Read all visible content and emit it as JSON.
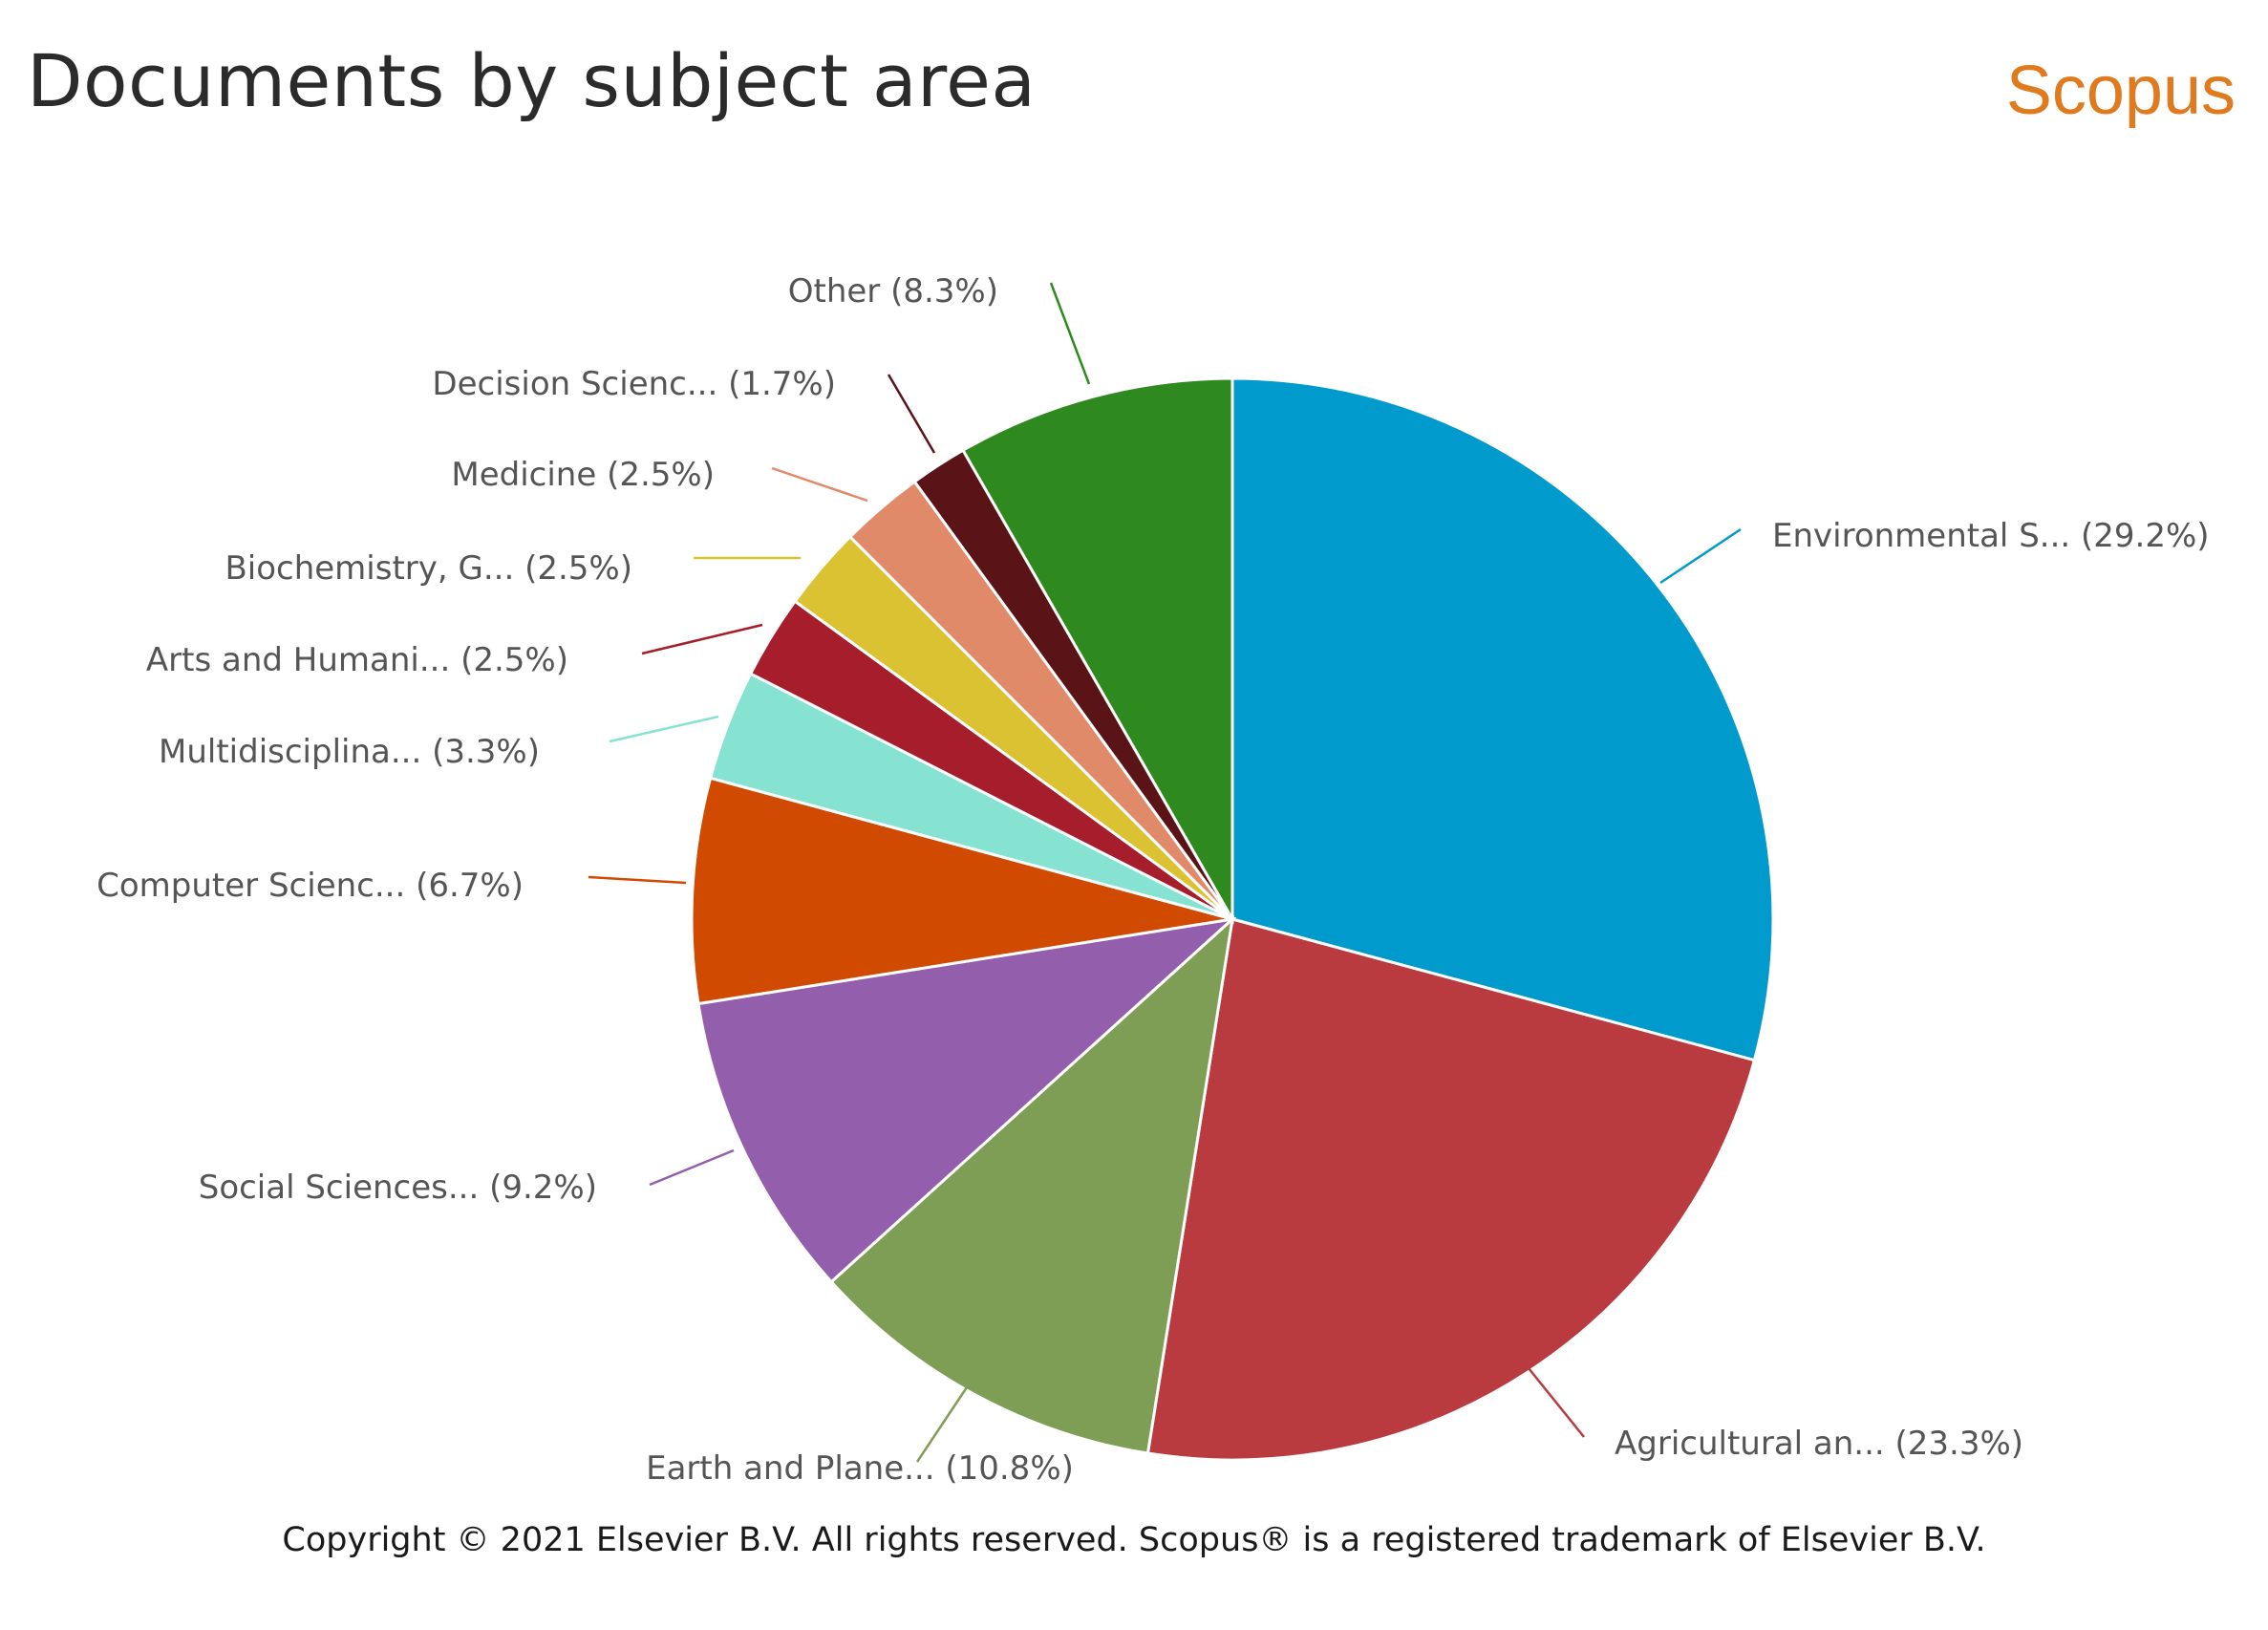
{
  "header": {
    "title": "Documents by subject area",
    "brand": "Scopus"
  },
  "footer": {
    "copyright": "Copyright © 2021 Elsevier B.V. All rights reserved. Scopus® is a registered trademark of Elsevier B.V."
  },
  "chart_data": {
    "type": "pie",
    "title": "Documents by subject area",
    "start_angle_deg": 0,
    "direction": "clockwise",
    "slices": [
      {
        "label": "Environmental S... (29.2%)",
        "value": 29.2,
        "color": "#009bcc"
      },
      {
        "label": "Agricultural an... (23.3%)",
        "value": 23.3,
        "color": "#b93a3f"
      },
      {
        "label": "Earth and Plane... (10.8%)",
        "value": 10.8,
        "color": "#7f9e55"
      },
      {
        "label": "Social Sciences... (9.2%)",
        "value": 9.2,
        "color": "#935fad"
      },
      {
        "label": "Computer Scienc... (6.7%)",
        "value": 6.7,
        "color": "#d14a02"
      },
      {
        "label": "Multidisciplina... (3.3%)",
        "value": 3.3,
        "color": "#86e3d2"
      },
      {
        "label": "Arts and Humani... (2.5%)",
        "value": 2.5,
        "color": "#a61e2b"
      },
      {
        "label": "Biochemistry, G... (2.5%)",
        "value": 2.5,
        "color": "#dbc232"
      },
      {
        "label": "Medicine (2.5%)",
        "value": 2.5,
        "color": "#e08a6a"
      },
      {
        "label": "Decision Scienc... (1.7%)",
        "value": 1.7,
        "color": "#5a1418"
      },
      {
        "label": "Other (8.3%)",
        "value": 8.3,
        "color": "#2e8a1f"
      }
    ]
  }
}
